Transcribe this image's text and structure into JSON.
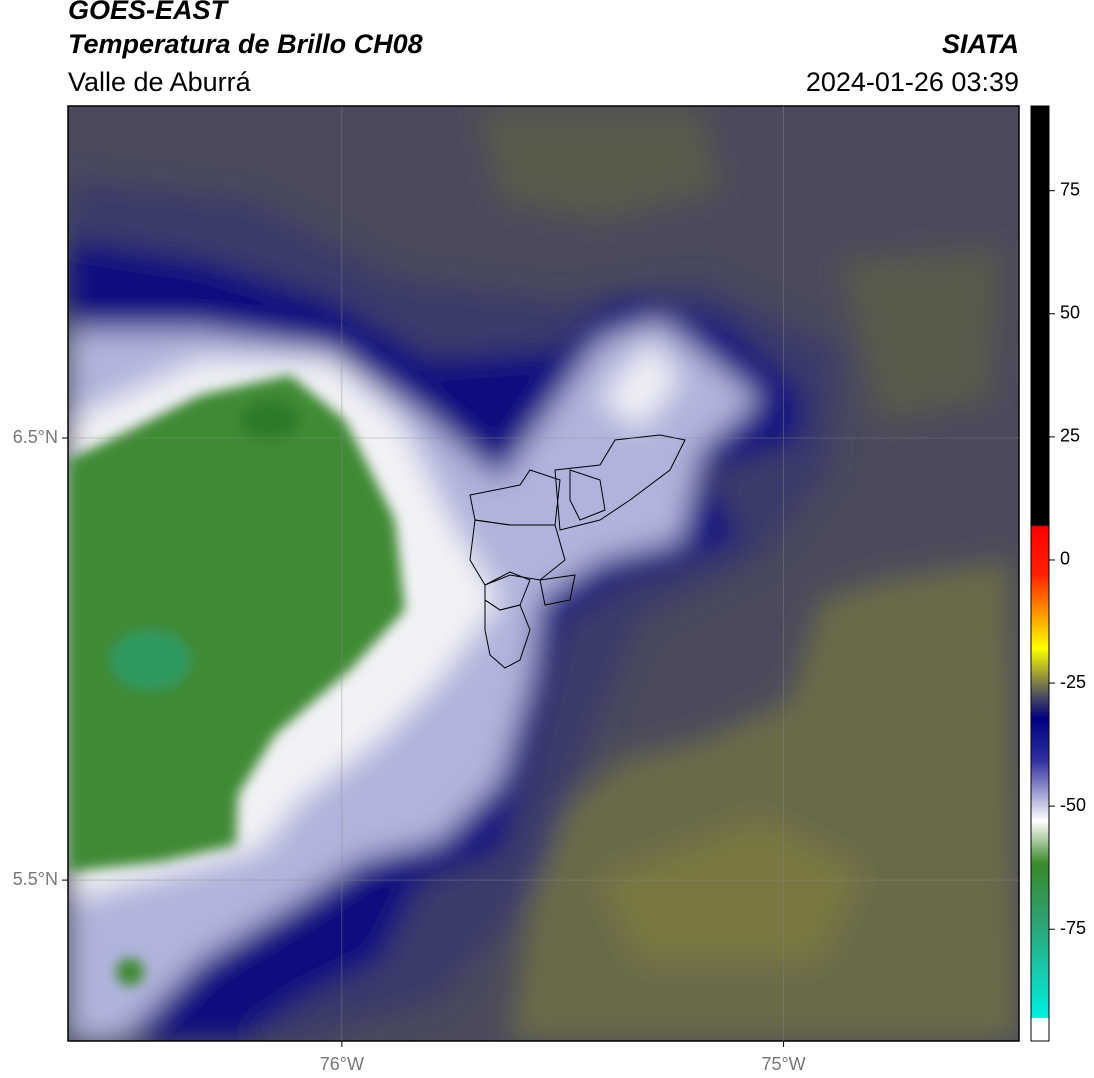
{
  "header": {
    "title": "GOES-EAST",
    "subtitle": "Temperatura de Brillo CH08",
    "source": "SIATA",
    "region": "Valle de Aburrá",
    "datetime": "2024-01-26 03:39"
  },
  "map": {
    "lon_range": [
      -76.62,
      -74.467
    ],
    "lat_range": [
      5.136,
      7.251
    ],
    "lon_ticks": [
      {
        "value": -76,
        "label": "76°W"
      },
      {
        "value": -75,
        "label": "75°W"
      }
    ],
    "lat_ticks": [
      {
        "value": 6.5,
        "label": "6.5°N"
      },
      {
        "value": 5.5,
        "label": "5.5°N"
      }
    ]
  },
  "colorbar": {
    "range": [
      -97.7,
      92.2
    ],
    "ticks": [
      75,
      50,
      25,
      0,
      -25,
      -50,
      -75
    ]
  }
}
